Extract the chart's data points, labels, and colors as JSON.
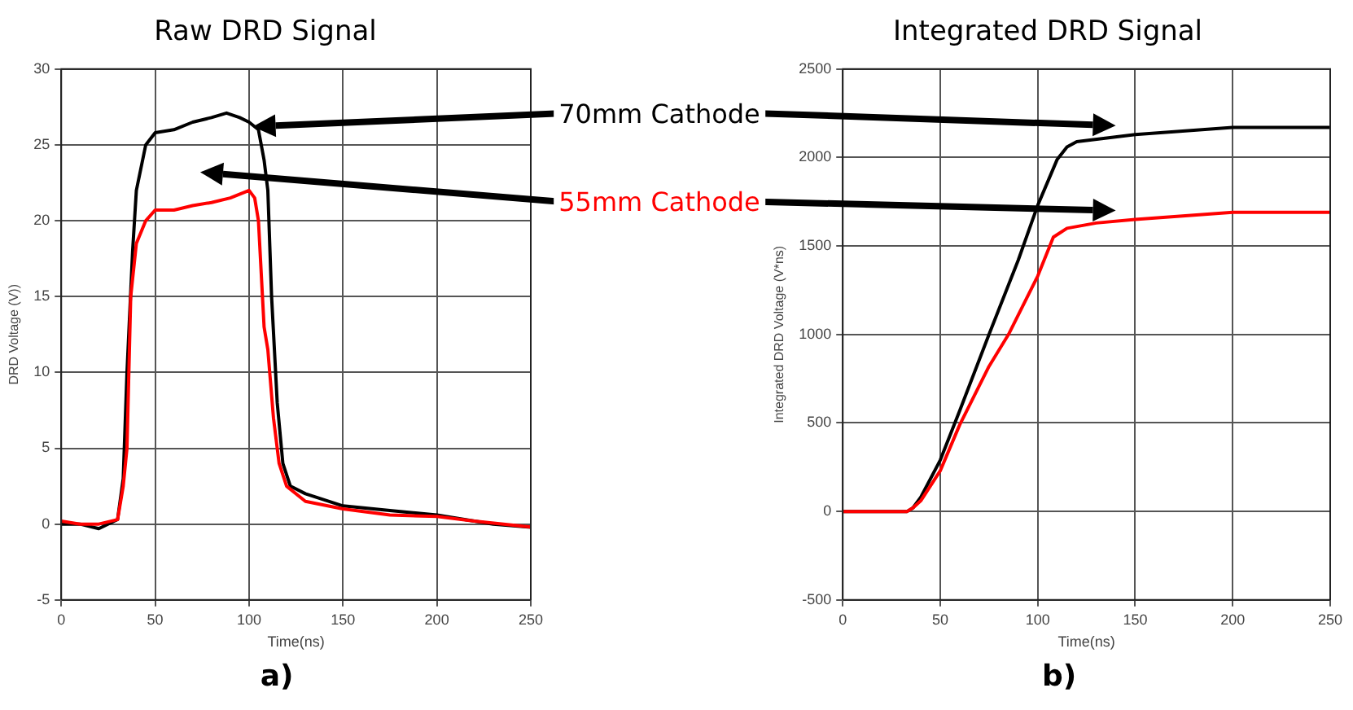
{
  "chart_data": [
    {
      "type": "line",
      "title": "Raw DRD Signal",
      "xlabel": "Time(ns)",
      "ylabel": "DRD Voltage (V))",
      "xlim": [
        0,
        250
      ],
      "xticks": [
        0,
        50,
        100,
        150,
        200,
        250
      ],
      "ylim": [
        -5,
        30
      ],
      "yticks": [
        -5,
        0,
        5,
        10,
        15,
        20,
        25,
        30
      ],
      "grid": true,
      "legend": false,
      "marker": "none",
      "annotations": [
        "a)"
      ],
      "series": [
        {
          "name": "70mm Cathode",
          "color": "#000000",
          "x": [
            0,
            10,
            20,
            30,
            33,
            35,
            38,
            40,
            45,
            50,
            60,
            70,
            80,
            88,
            95,
            100,
            105,
            108,
            110,
            112,
            115,
            118,
            122,
            130,
            150,
            175,
            200,
            230,
            250
          ],
          "values": [
            0,
            0,
            -0.3,
            0.3,
            3,
            10,
            18,
            22,
            25,
            25.8,
            26,
            26.5,
            26.8,
            27.1,
            26.8,
            26.5,
            26,
            24,
            22,
            15,
            8,
            4,
            2.5,
            2,
            1.2,
            0.9,
            0.6,
            0,
            -0.2
          ]
        },
        {
          "name": "55mm Cathode",
          "color": "#ff0000",
          "x": [
            0,
            10,
            20,
            30,
            33,
            35,
            37,
            40,
            45,
            50,
            60,
            70,
            80,
            90,
            100,
            103,
            105,
            108,
            110,
            113,
            116,
            120,
            130,
            150,
            175,
            200,
            220,
            250
          ],
          "values": [
            0.2,
            0,
            0,
            0.3,
            2.5,
            5,
            15,
            18.5,
            20,
            20.7,
            20.7,
            21,
            21.2,
            21.5,
            22,
            21.5,
            20,
            13,
            11.5,
            7,
            4,
            2.5,
            1.5,
            1,
            0.6,
            0.5,
            0.2,
            -0.2
          ]
        }
      ]
    },
    {
      "type": "line",
      "title": "Integrated DRD Signal",
      "xlabel": "Time(ns)",
      "ylabel": "Integrated DRD Voltage (V*ns)",
      "xlim": [
        0,
        250
      ],
      "xticks": [
        0,
        50,
        100,
        150,
        200,
        250
      ],
      "ylim": [
        -500,
        2500
      ],
      "yticks": [
        -500,
        0,
        500,
        1000,
        1500,
        2000,
        2500
      ],
      "grid": true,
      "legend": false,
      "marker": "none",
      "annotations": [
        "b)"
      ],
      "series": [
        {
          "color": "#000000",
          "x": [
            0,
            20,
            33,
            36,
            40,
            50,
            60,
            75,
            90,
            100,
            110,
            115,
            120,
            150,
            200,
            250
          ],
          "values": [
            0,
            0,
            0,
            20,
            80,
            290,
            570,
            1000,
            1420,
            1730,
            1990,
            2060,
            2090,
            2130,
            2170,
            2170
          ]
        },
        {
          "color": "#ff0000",
          "x": [
            0,
            20,
            33,
            36,
            40,
            50,
            60,
            75,
            85,
            100,
            108,
            115,
            130,
            150,
            200,
            250
          ],
          "values": [
            0,
            0,
            0,
            20,
            60,
            230,
            490,
            820,
            1000,
            1330,
            1550,
            1600,
            1630,
            1650,
            1690,
            1690
          ]
        }
      ]
    }
  ]
}
